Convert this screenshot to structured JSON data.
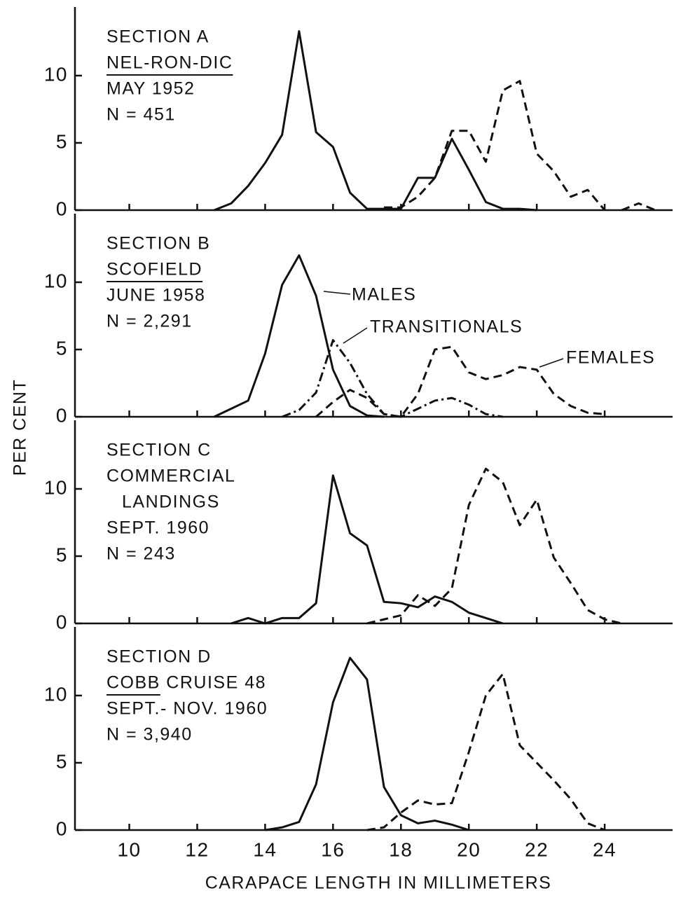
{
  "ylabel": "PER CENT",
  "xlabel": "CARAPACE LENGTH IN MILLIMETERS",
  "chart_data": [
    {
      "type": "line",
      "labels": [
        {
          "text": "SECTION A"
        },
        {
          "text": "NEL-RON-DIC",
          "underline": "NEL-RON-DIC"
        },
        {
          "text": "MAY 1952"
        },
        {
          "text": "N = 451"
        }
      ],
      "xlim": [
        8.4,
        26
      ],
      "ylim": [
        0,
        15.1
      ],
      "yticks": [
        0,
        5,
        10
      ],
      "series": [
        {
          "style": "solid",
          "color": "#111111",
          "x": [
            12.5,
            13,
            13.5,
            14,
            14.5,
            15,
            15.5,
            16,
            16.5,
            17,
            17.5,
            18,
            18.5,
            19,
            19.5,
            20,
            20.5,
            21,
            21.5,
            22
          ],
          "values": [
            0,
            0.5,
            1.8,
            3.5,
            5.6,
            13.3,
            5.8,
            4.7,
            1.3,
            0.1,
            0.1,
            0.1,
            2.4,
            2.4,
            5.3,
            3,
            0.6,
            0.1,
            0.1,
            0
          ]
        },
        {
          "style": "dashed",
          "color": "#111111",
          "x": [
            17.5,
            18,
            18.5,
            19,
            19.5,
            20,
            20.5,
            21,
            21.5,
            22,
            22.5,
            23,
            23.5,
            24,
            24.25,
            24.5,
            25,
            25.5
          ],
          "values": [
            0.2,
            0.2,
            1.0,
            2.4,
            5.9,
            5.9,
            3.6,
            8.9,
            9.6,
            4.2,
            2.9,
            1.0,
            1.5,
            0,
            null,
            0,
            0.5,
            0
          ]
        }
      ]
    },
    {
      "type": "line",
      "labels": [
        {
          "text": "SECTION B"
        },
        {
          "text": "SCOFIELD",
          "underline": "SCOFIELD"
        },
        {
          "text": "JUNE 1958"
        },
        {
          "text": "N = 2,291"
        }
      ],
      "xlim": [
        8.4,
        26
      ],
      "ylim": [
        0,
        15.1
      ],
      "yticks": [
        0,
        5,
        10
      ],
      "series": [
        {
          "name": "MALES",
          "style": "solid",
          "color": "#111111",
          "x": [
            12.5,
            13,
            13.5,
            14,
            14.5,
            15,
            15.5,
            16,
            16.5,
            17,
            17.5
          ],
          "values": [
            0,
            0.6,
            1.2,
            4.7,
            9.8,
            12.0,
            9.0,
            3.5,
            0.8,
            0.1,
            0
          ]
        },
        {
          "name": "TRANSITIONALS",
          "style": "dashdot",
          "color": "#111111",
          "x": [
            14.5,
            15,
            15.5,
            16,
            16.5,
            17,
            17.5,
            18,
            18.5,
            19,
            19.5,
            20,
            20.5,
            21
          ],
          "values": [
            0,
            0.5,
            1.8,
            5.7,
            4.0,
            1.7,
            0.2,
            0,
            0.6,
            1.2,
            1.4,
            0.9,
            0.2,
            0
          ]
        },
        {
          "name": "FEMALES",
          "style": "dashed",
          "color": "#111111",
          "x": [
            15.5,
            16,
            16.5,
            17,
            17.5,
            18,
            18.5,
            19,
            19.5,
            20,
            20.5,
            21,
            21.5,
            22,
            22.5,
            23,
            23.5,
            24
          ],
          "values": [
            0,
            1.1,
            2.0,
            1.4,
            0.2,
            0,
            1.7,
            5.0,
            5.2,
            3.3,
            2.8,
            3.1,
            3.7,
            3.5,
            1.7,
            0.8,
            0.3,
            0.2
          ]
        }
      ]
    },
    {
      "type": "line",
      "labels": [
        {
          "text": "SECTION C"
        },
        {
          "text": "COMMERCIAL"
        },
        {
          "text": "LANDINGS",
          "indent": true
        },
        {
          "text": "SEPT. 1960"
        },
        {
          "text": "N = 243"
        }
      ],
      "xlim": [
        8.4,
        26
      ],
      "ylim": [
        0,
        15.1
      ],
      "yticks": [
        0,
        5,
        10
      ],
      "series": [
        {
          "style": "solid",
          "color": "#111111",
          "x": [
            13,
            13.5,
            14,
            14.5,
            15,
            15.5,
            16,
            16.5,
            17,
            17.5,
            18,
            18.5,
            19,
            19.5,
            20,
            20.5,
            21
          ],
          "values": [
            0,
            0.4,
            0,
            0.4,
            0.4,
            1.5,
            11.0,
            6.7,
            5.8,
            1.6,
            1.5,
            1.2,
            2.0,
            1.6,
            0.8,
            0.4,
            0
          ]
        },
        {
          "style": "dashed",
          "color": "#111111",
          "x": [
            17,
            17.5,
            18,
            18.5,
            19,
            19.5,
            20,
            20.5,
            21,
            21.5,
            22,
            22.5,
            23,
            23.5,
            24,
            24.5
          ],
          "values": [
            0,
            0.3,
            0.6,
            2.1,
            1.3,
            2.6,
            8.8,
            11.5,
            10.5,
            7.3,
            9.2,
            4.9,
            3.0,
            1.0,
            0.3,
            0
          ]
        }
      ]
    },
    {
      "type": "line",
      "labels": [
        {
          "text": "SECTION D"
        },
        {
          "text": "COBB CRUISE 48",
          "underline": "COBB"
        },
        {
          "text": "SEPT.- NOV. 1960"
        },
        {
          "text": "N = 3,940"
        }
      ],
      "xlim": [
        8.4,
        26
      ],
      "ylim": [
        0,
        15.1
      ],
      "yticks": [
        0,
        5,
        10
      ],
      "xticks": [
        10,
        12,
        14,
        16,
        18,
        20,
        22,
        24
      ],
      "series": [
        {
          "style": "solid",
          "color": "#111111",
          "x": [
            14,
            14.5,
            15,
            15.5,
            16,
            16.5,
            17,
            17.5,
            18,
            18.5,
            19,
            19.5,
            20
          ],
          "values": [
            0,
            0.2,
            0.6,
            3.4,
            9.5,
            12.8,
            11.2,
            3.2,
            1.1,
            0.5,
            0.7,
            0.4,
            0
          ]
        },
        {
          "style": "dashed",
          "color": "#111111",
          "x": [
            17,
            17.5,
            18,
            18.5,
            19,
            19.5,
            20,
            20.5,
            21,
            21.5,
            22,
            22.5,
            23,
            23.5,
            24
          ],
          "values": [
            0,
            0.2,
            1.3,
            2.2,
            1.9,
            2.0,
            5.8,
            10.0,
            11.6,
            6.3,
            5.0,
            3.7,
            2.3,
            0.5,
            0
          ]
        }
      ]
    }
  ]
}
